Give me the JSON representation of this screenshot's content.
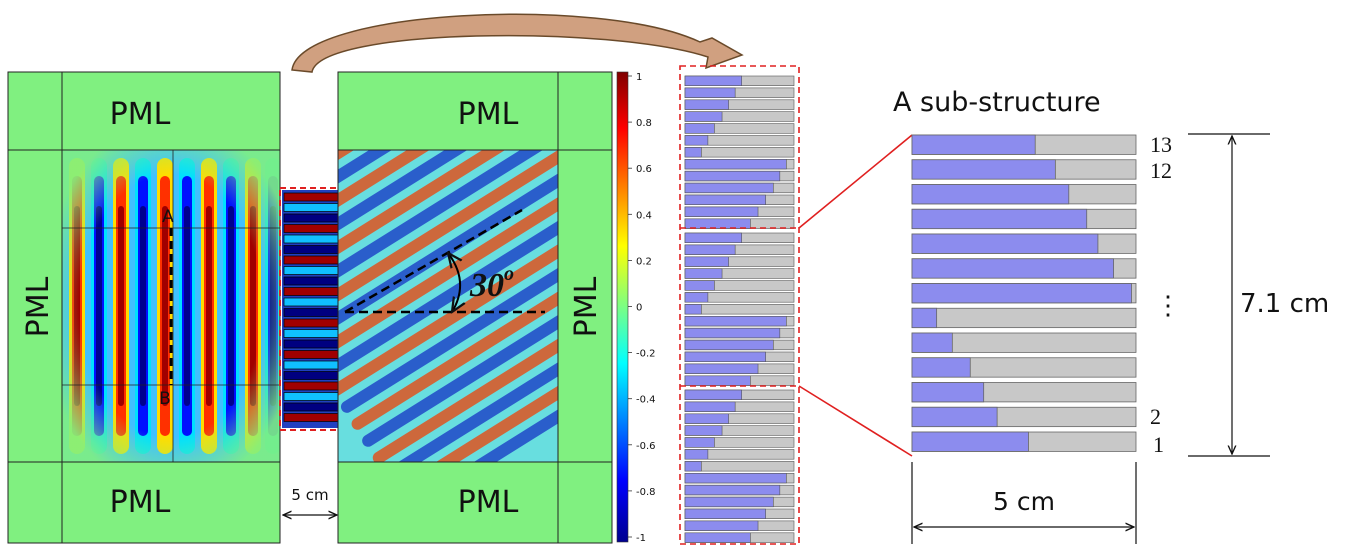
{
  "left_panel": {
    "pml_top": "PML",
    "pml_left": "PML",
    "pml_bottom": "PML",
    "point_a": "A",
    "point_b": "B"
  },
  "gap_label": "5 cm",
  "right_panel": {
    "pml_top": "PML",
    "pml_right": "PML",
    "pml_bottom": "PML",
    "angle_label": "30",
    "angle_superscript": "o"
  },
  "colorbar": {
    "ticks": [
      "1",
      "0.8",
      "0.6",
      "0.4",
      "0.2",
      "0",
      "-0.2",
      "-0.4",
      "-0.6",
      "-0.8",
      "-1"
    ],
    "colors": [
      "#00008f",
      "#0000ff",
      "#00ffff",
      "#ffff00",
      "#ff0000",
      "#800000"
    ]
  },
  "substructure": {
    "title": "A sub-structure",
    "row_labels": {
      "r13": "13",
      "r12": "12",
      "dots": "⋮",
      "r2": "2",
      "r1": "1"
    },
    "height_label": "7.1 cm",
    "width_label": "5 cm",
    "fill_fractions": [
      0.55,
      0.64,
      0.7,
      0.78,
      0.83,
      0.9,
      0.98,
      0.11,
      0.18,
      0.26,
      0.32,
      0.38,
      0.52
    ],
    "colors": {
      "fill": "#8c8cee",
      "rest": "#c8c8c8",
      "pml": "#80f080",
      "dash": "#e02020"
    }
  },
  "column_sections": [
    [
      0.52,
      0.46,
      0.4,
      0.34,
      0.27,
      0.21,
      0.15,
      0.93,
      0.87,
      0.81,
      0.74,
      0.67,
      0.6
    ],
    [
      0.52,
      0.46,
      0.4,
      0.34,
      0.27,
      0.21,
      0.15,
      0.93,
      0.87,
      0.81,
      0.74,
      0.67,
      0.6
    ],
    [
      0.52,
      0.46,
      0.4,
      0.34,
      0.27,
      0.21,
      0.15,
      0.93,
      0.87,
      0.81,
      0.74,
      0.67,
      0.6
    ]
  ]
}
